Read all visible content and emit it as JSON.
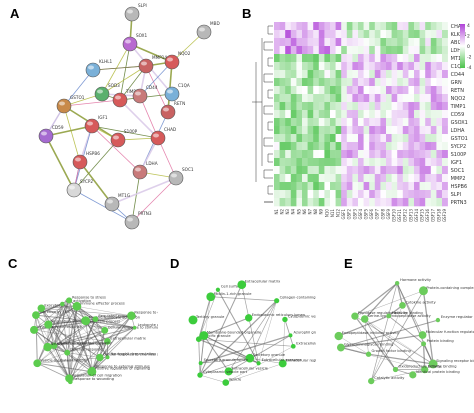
{
  "panels": {
    "a": "A",
    "b": "B",
    "c": "C",
    "d": "D",
    "e": "E"
  },
  "ppi": {
    "nodes": [
      {
        "label": "SLPI",
        "color": "#b8b8b8"
      },
      {
        "label": "MBD",
        "color": "#b8b8b8"
      },
      {
        "label": "SOX1",
        "color": "#b86ad0"
      },
      {
        "label": "KLHL1",
        "color": "#7ab0d8"
      },
      {
        "label": "MMP14",
        "color": "#c86262"
      },
      {
        "label": "NQO2",
        "color": "#d65a5a"
      },
      {
        "label": "SOD3",
        "color": "#5ab06e"
      },
      {
        "label": "GSTO1",
        "color": "#c88a4a"
      },
      {
        "label": "TIMP1",
        "color": "#d65a5a"
      },
      {
        "label": "CD44",
        "color": "#c87a7a"
      },
      {
        "label": "C1QA",
        "color": "#7ab0d8"
      },
      {
        "label": "RETN",
        "color": "#c86262"
      },
      {
        "label": "IGF1",
        "color": "#d65a5a"
      },
      {
        "label": "CD59",
        "color": "#a56ad0"
      },
      {
        "label": "S100P",
        "color": "#d65a5a"
      },
      {
        "label": "CHAD",
        "color": "#d65a5a"
      },
      {
        "label": "HSPB6",
        "color": "#d65a5a"
      },
      {
        "label": "LDHA",
        "color": "#c87a7a"
      },
      {
        "label": "SOC1",
        "color": "#b8b8b8"
      },
      {
        "label": "SYCP2",
        "color": "#d8d8d8"
      },
      {
        "label": "MT1G",
        "color": "#b8b8b8"
      },
      {
        "label": "PRTN3",
        "color": "#b8b8b8"
      }
    ]
  },
  "heatmap": {
    "rows": [
      "CHAD",
      "KLKB1",
      "ABI2",
      "LDHB",
      "MT1G",
      "C1QA",
      "CD44",
      "GRN",
      "RETN",
      "NQO2",
      "TIMP1",
      "CD59",
      "GSOX1",
      "LDHA",
      "GSTO1",
      "SYCP2",
      "S100P",
      "IGF1",
      "SOC1",
      "MMP2",
      "HSPB6",
      "SLPI",
      "PRTN3"
    ],
    "cols": [
      "N1",
      "N2",
      "N3",
      "N4",
      "N5",
      "N6",
      "N7",
      "N8",
      "N9",
      "N10",
      "N11",
      "N12",
      "GSF1",
      "GSF2",
      "GSF3",
      "GSF4",
      "GSF5",
      "GSF6",
      "GSF7",
      "GSF8",
      "GSF9",
      "GSF10",
      "GSF11",
      "GSF12",
      "GSF13",
      "GSF14",
      "GSF15",
      "GSF16",
      "GSF17",
      "GSF18",
      "GSF19"
    ],
    "legend_ticks": [
      "4",
      "2",
      "0",
      "-2",
      "-4"
    ],
    "color_high": "#b042d8",
    "color_mid": "#ffffff",
    "color_low": "#4cc24c"
  },
  "networks": {
    "c": {
      "node_color": "#5ccc4e",
      "labels": [
        "Extracellular matrix",
        "Neutrophil degranulation",
        "Cellular response to chemical stimulus",
        "Response to external stimulus",
        "Positive regulation of signaling",
        "Response to wounding",
        "Regulation of cell migration",
        "Defense response",
        "Vesicle-mediated transport",
        "Leukocyte mediated immunity",
        "Neutrophil mediated immunity",
        "Innate immune response",
        "Regulation of immune system process",
        "Secretion by cell",
        "Exocytosis",
        "Cell activation",
        "Response to stress",
        "Immune effector process",
        "Myeloid leukocyte activation",
        "Regulated exocytosis",
        "Response to oxygen-containing compound",
        "Cellular response to stimulus",
        "Leukocyte activation involved in immune response"
      ]
    },
    "d": {
      "node_color": "#3ccc3c",
      "labels": [
        "Extracellular space",
        "Extracellular region part",
        "Extracellular exosome",
        "Secretory granule",
        "Extracellular vesicle",
        "Vesicle",
        "Cytoplasmic vesicle part",
        "Secretory granule lumen",
        "Specific granule",
        "Membrane-bounded organelle",
        "Tertiary granule",
        "Ficolin-1-rich granule",
        "Cell surface",
        "Extracellular matrix",
        "Endoplasmic reticulum lumen",
        "Collagen-containing extracellular matrix",
        "Cytoplasmic vesicle lumen",
        "Azurophil granule"
      ]
    },
    "e": {
      "node_color": "#6ccc5c",
      "labels": [
        "Protein binding",
        "Signaling receptor binding",
        "Enzyme binding",
        "Identical protein binding",
        "Oxidoreductase activity",
        "Catalytic activity",
        "Growth factor binding",
        "Glycosaminoglycan binding",
        "Endopeptidase inhibitor activity",
        "Peptidase regulator activity",
        "Serine-type endopeptidase activity",
        "Metal ion binding",
        "Hormone activity",
        "Cytokine activity",
        "Protein-containing complex binding",
        "Enzyme regulator activity",
        "Molecular function regulator"
      ]
    }
  }
}
